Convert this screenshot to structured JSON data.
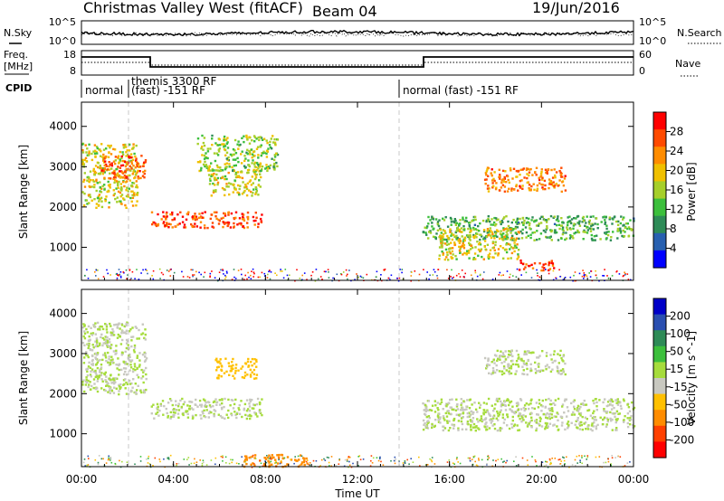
{
  "header": {
    "title": "Christmas Valley West (fitACF)",
    "beam": "Beam 04",
    "date": "19/Jun/2016"
  },
  "strip_nsky": {
    "label": "N.Sky",
    "right_label": "N.Search",
    "left_ticks": [
      "10^5",
      "10^0"
    ],
    "right_ticks": [
      "10^5",
      "10^0"
    ]
  },
  "strip_freq": {
    "label_line1": "Freq.",
    "label_line2": "[MHz]",
    "right_label": "Nave",
    "left_ticks": [
      "18",
      "8"
    ],
    "right_ticks": [
      "60",
      "0"
    ]
  },
  "cpid": {
    "label": "CPID",
    "segments": [
      "normal",
      "themis 3300 RF",
      "(fast) -151 RF",
      "normal (fast) -151 RF"
    ]
  },
  "power_panel": {
    "ylabel": "Slant Range [km]",
    "colorbar_label": "Power [dB]",
    "colorbar_ticks": [
      "28",
      "24",
      "20",
      "16",
      "12",
      "8",
      "4"
    ],
    "colorbar_colors": [
      "#ff0000",
      "#ff4a00",
      "#ff8c00",
      "#f0c000",
      "#a6cf2a",
      "#3cbf3c",
      "#2e8b57",
      "#2860b0",
      "#0000ff"
    ]
  },
  "velocity_panel": {
    "ylabel": "Slant Range [km]",
    "colorbar_label": "Velocity [m s^-1]",
    "colorbar_ticks": [
      "200",
      "100",
      "50",
      "15",
      "-15",
      "-50",
      "-100",
      "-200"
    ],
    "colorbar_colors": [
      "#0000c8",
      "#2a4fb0",
      "#2e8b57",
      "#3cbf3c",
      "#a6dc3c",
      "#c8c8c0",
      "#ffc000",
      "#ff8c00",
      "#ff4000",
      "#ff0000"
    ]
  },
  "x_axis": {
    "label": "Time UT",
    "ticks": [
      "00:00",
      "04:00",
      "08:00",
      "12:00",
      "16:00",
      "20:00",
      "00:00"
    ]
  },
  "chart_data": [
    {
      "type": "heatmap",
      "title": "Christmas Valley West (fitACF)",
      "xlabel": "Time UT",
      "ylabel": "Slant Range [km]",
      "zlabel": "Power [dB]",
      "xlim": [
        0,
        24
      ],
      "ylim": [
        180,
        4600
      ],
      "zlim": [
        0,
        32
      ],
      "y_ticks": [
        1000,
        2000,
        3000,
        4000
      ],
      "regions": [
        {
          "t": [
            0.0,
            2.4
          ],
          "r": [
            2000,
            3600
          ],
          "z": 18
        },
        {
          "t": [
            0.8,
            2.8
          ],
          "r": [
            2700,
            3300
          ],
          "z": 26
        },
        {
          "t": [
            3.0,
            7.8
          ],
          "r": [
            1500,
            1900
          ],
          "z": 27
        },
        {
          "t": [
            5.5,
            7.8
          ],
          "r": [
            2300,
            2900
          ],
          "z": 18
        },
        {
          "t": [
            5.0,
            8.5
          ],
          "r": [
            2900,
            3800
          ],
          "z": 15
        },
        {
          "t": [
            14.8,
            24.0
          ],
          "r": [
            1200,
            1800
          ],
          "z": 12
        },
        {
          "t": [
            17.5,
            21.0
          ],
          "r": [
            2400,
            3000
          ],
          "z": 24
        },
        {
          "t": [
            15.5,
            19.0
          ],
          "r": [
            700,
            1500
          ],
          "z": 18
        },
        {
          "t": [
            19.0,
            20.5
          ],
          "r": [
            450,
            700
          ],
          "z": 28
        }
      ]
    },
    {
      "type": "heatmap",
      "xlabel": "Time UT",
      "ylabel": "Slant Range [km]",
      "zlabel": "Velocity [m s^-1]",
      "xlim": [
        0,
        24
      ],
      "ylim": [
        180,
        4600
      ],
      "zlim": [
        -250,
        250
      ],
      "y_ticks": [
        1000,
        2000,
        3000,
        4000
      ],
      "regions": [
        {
          "t": [
            0.0,
            2.8
          ],
          "r": [
            2000,
            3800
          ],
          "z": 0
        },
        {
          "t": [
            3.0,
            7.8
          ],
          "r": [
            1400,
            1900
          ],
          "z": 0
        },
        {
          "t": [
            5.8,
            7.6
          ],
          "r": [
            2400,
            2900
          ],
          "z": -60
        },
        {
          "t": [
            7.0,
            9.8
          ],
          "r": [
            200,
            500
          ],
          "z": -120
        },
        {
          "t": [
            14.8,
            24.0
          ],
          "r": [
            1100,
            1900
          ],
          "z": 0
        },
        {
          "t": [
            17.5,
            21.0
          ],
          "r": [
            2500,
            3100
          ],
          "z": 0
        }
      ]
    }
  ]
}
